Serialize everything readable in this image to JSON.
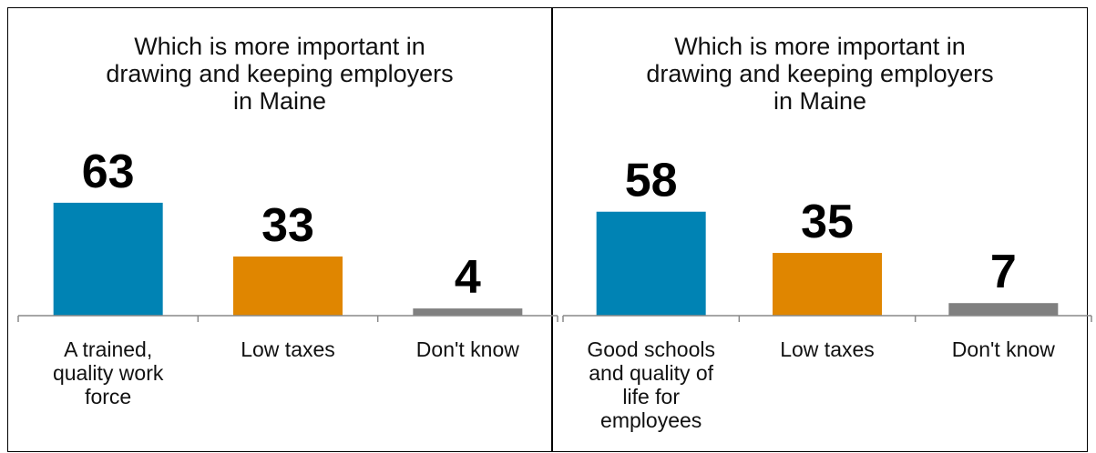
{
  "chart_data": [
    {
      "type": "bar",
      "title_lines": [
        "Which is more important in",
        "drawing and keeping employers",
        "in Maine"
      ],
      "categories": [
        [
          "A trained,",
          "quality work",
          "force"
        ],
        [
          "Low taxes"
        ],
        [
          "Don't know"
        ]
      ],
      "values": [
        63,
        33,
        4
      ],
      "value_labels": [
        "63",
        "33",
        "4"
      ],
      "colors": [
        "#0083b4",
        "#e08600",
        "#808080"
      ],
      "ylim": [
        0,
        100
      ],
      "grid": false,
      "legend": "none"
    },
    {
      "type": "bar",
      "title_lines": [
        "Which is more important in",
        "drawing and keeping employers",
        "in Maine"
      ],
      "categories": [
        [
          "Good schools",
          "and quality of",
          "life for",
          "employees"
        ],
        [
          "Low taxes"
        ],
        [
          "Don't know"
        ]
      ],
      "values": [
        58,
        35,
        7
      ],
      "value_labels": [
        "58",
        "35",
        "7"
      ],
      "colors": [
        "#0083b4",
        "#e08600",
        "#808080"
      ],
      "ylim": [
        0,
        100
      ],
      "grid": false,
      "legend": "none"
    }
  ]
}
